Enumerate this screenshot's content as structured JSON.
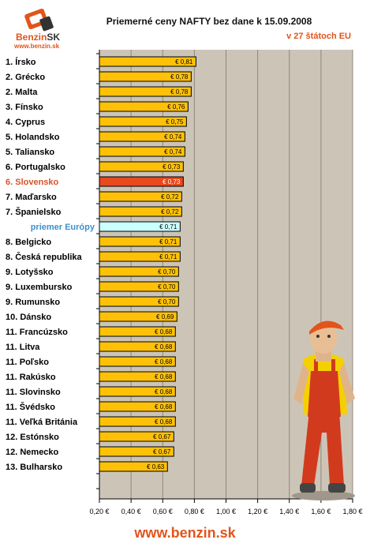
{
  "logo": {
    "name_part1": "Benzin",
    "name_part2": "SK",
    "url": "www.benzin.sk"
  },
  "header": {
    "title": "Priemerné ceny NAFTY bez dane k 15.09.2008",
    "subtitle": "v 27 štátoch EU"
  },
  "footer": {
    "url": "www.benzin.sk"
  },
  "colors": {
    "bar": "#ffc107",
    "highlight": "#e8491d",
    "average": "#ccffff",
    "plot_bg": "#ccc5b7",
    "highlight_label": "#d2542b",
    "average_label": "#3c91d0"
  },
  "chart_data": {
    "type": "bar",
    "orientation": "horizontal",
    "title": "Priemerné ceny NAFTY bez dane k 15.09.2008",
    "subtitle": "v 27 štátoch EU",
    "xlim": [
      0.2,
      1.8
    ],
    "x_ticks": [
      "0,20 €",
      "0,40 €",
      "0,60 €",
      "0,80 €",
      "1,00 €",
      "1,20 €",
      "1,40 €",
      "1,60 €",
      "1,80 €"
    ],
    "x_tick_values": [
      0.2,
      0.4,
      0.6,
      0.8,
      1.0,
      1.2,
      1.4,
      1.6,
      1.8
    ],
    "grid": "vertical",
    "categories": [
      "1. Írsko",
      "2. Grécko",
      "2. Malta",
      "3. Fínsko",
      "4. Cyprus",
      "5. Holandsko",
      "5. Taliansko",
      "6. Portugalsko",
      "6. Slovensko",
      "7. Maďarsko",
      "7. Španielsko",
      "priemer Európy",
      "8. Belgicko",
      "8. Česká republika",
      "9. Lotyšsko",
      "9. Luxembursko",
      "9. Rumunsko",
      "10. Dánsko",
      "11. Francúzsko",
      "11. Litva",
      "11. Poľsko",
      "11. Rakúsko",
      "11. Slovinsko",
      "11. Švédsko",
      "11. Veľká Británia",
      "12. Estónsko",
      "12. Nemecko",
      "13. Bulharsko"
    ],
    "values": [
      0.81,
      0.78,
      0.78,
      0.76,
      0.75,
      0.74,
      0.74,
      0.73,
      0.73,
      0.72,
      0.72,
      0.71,
      0.71,
      0.71,
      0.7,
      0.7,
      0.7,
      0.69,
      0.68,
      0.68,
      0.68,
      0.68,
      0.68,
      0.68,
      0.68,
      0.67,
      0.67,
      0.63
    ],
    "value_labels": [
      "€ 0,81",
      "€ 0,78",
      "€ 0,78",
      "€ 0,76",
      "€ 0,75",
      "€ 0,74",
      "€ 0,74",
      "€ 0,73",
      "€ 0,73",
      "€ 0,72",
      "€ 0,72",
      "€ 0,71",
      "€ 0,71",
      "€ 0,71",
      "€ 0,70",
      "€ 0,70",
      "€ 0,70",
      "€ 0,69",
      "€ 0,68",
      "€ 0,68",
      "€ 0,68",
      "€ 0,68",
      "€ 0,68",
      "€ 0,68",
      "€ 0,68",
      "€ 0,67",
      "€ 0,67",
      "€ 0,63"
    ],
    "highlight_category": "6. Slovensko",
    "average_category": "priemer Európy"
  }
}
